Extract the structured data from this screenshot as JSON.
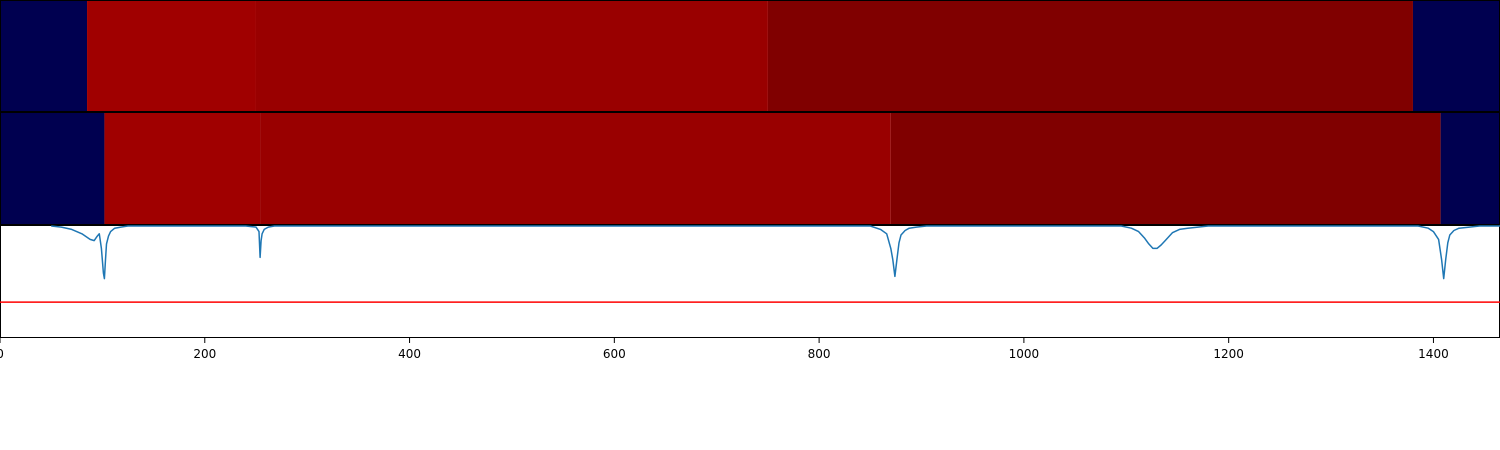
{
  "chart_data": [
    {
      "type": "heatmap",
      "xlim": [
        0,
        1465
      ],
      "segments": [
        {
          "start": 0,
          "end": 85,
          "color": "#000050"
        },
        {
          "start": 85,
          "end": 250,
          "color": "#a00000"
        },
        {
          "start": 250,
          "end": 750,
          "color": "#990000"
        },
        {
          "start": 750,
          "end": 1380,
          "color": "#800000"
        },
        {
          "start": 1380,
          "end": 1465,
          "color": "#000050"
        }
      ]
    },
    {
      "type": "heatmap",
      "xlim": [
        0,
        1465
      ],
      "segments": [
        {
          "start": 0,
          "end": 102,
          "color": "#000050"
        },
        {
          "start": 102,
          "end": 254,
          "color": "#a00000"
        },
        {
          "start": 254,
          "end": 870,
          "color": "#990000"
        },
        {
          "start": 870,
          "end": 1407,
          "color": "#800000"
        },
        {
          "start": 1407,
          "end": 1465,
          "color": "#000050"
        }
      ]
    },
    {
      "type": "line",
      "xlim": [
        0,
        1465
      ],
      "ylim": [
        -1.0,
        0.0
      ],
      "threshold": -0.68,
      "threshold_color": "#ff0000",
      "line_color": "#1f77b4",
      "xticks": [
        0,
        200,
        400,
        600,
        800,
        1000,
        1200,
        1400
      ],
      "x": [
        50,
        60,
        70,
        80,
        88,
        92,
        95,
        97,
        99,
        101,
        102,
        103,
        104,
        106,
        108,
        112,
        118,
        125,
        240,
        250,
        253,
        254,
        255,
        256,
        258,
        262,
        268,
        275,
        850,
        860,
        866,
        870,
        872,
        874,
        876,
        878,
        880,
        884,
        888,
        895,
        905,
        1095,
        1105,
        1112,
        1118,
        1122,
        1126,
        1130,
        1134,
        1138,
        1145,
        1152,
        1160,
        1170,
        1180,
        1190,
        1385,
        1395,
        1400,
        1405,
        1408,
        1410,
        1412,
        1414,
        1416,
        1420,
        1425,
        1435,
        1445,
        1465
      ],
      "y": [
        0.0,
        -0.01,
        -0.03,
        -0.07,
        -0.12,
        -0.13,
        -0.09,
        -0.07,
        -0.2,
        -0.42,
        -0.47,
        -0.3,
        -0.16,
        -0.09,
        -0.05,
        -0.02,
        -0.01,
        0.0,
        0.0,
        -0.01,
        -0.05,
        -0.28,
        -0.13,
        -0.07,
        -0.03,
        -0.01,
        0.0,
        0.0,
        0.0,
        -0.03,
        -0.07,
        -0.2,
        -0.3,
        -0.45,
        -0.3,
        -0.15,
        -0.08,
        -0.04,
        -0.02,
        -0.01,
        0.0,
        0.0,
        -0.02,
        -0.05,
        -0.11,
        -0.16,
        -0.2,
        -0.2,
        -0.17,
        -0.13,
        -0.06,
        -0.03,
        -0.02,
        -0.01,
        0.0,
        0.0,
        0.0,
        -0.02,
        -0.05,
        -0.12,
        -0.3,
        -0.47,
        -0.3,
        -0.15,
        -0.08,
        -0.04,
        -0.02,
        -0.01,
        0.0,
        0.0
      ]
    }
  ]
}
